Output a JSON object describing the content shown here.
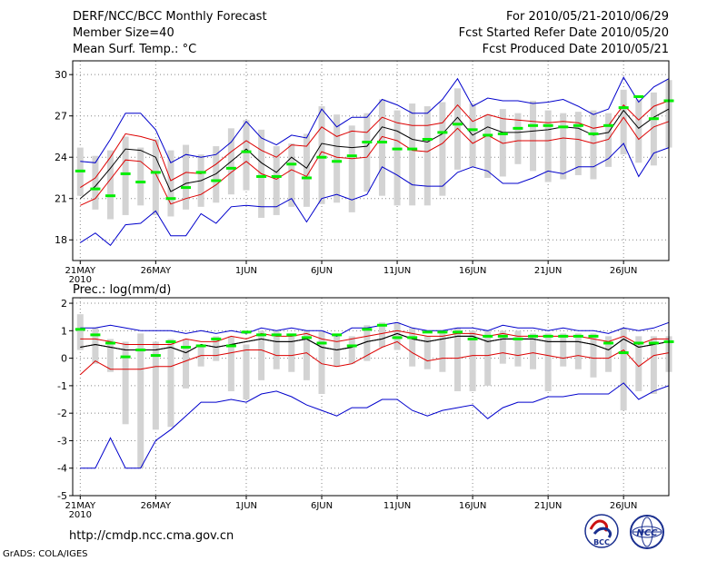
{
  "header": {
    "title": "DERF/NCC/BCC Monthly Forecast",
    "member_size": "Member Size=40",
    "variable": "Mean Surf. Temp.: °C",
    "period": "For 2010/05/21-2010/06/29",
    "fcst_started": "Fcst Started Refer Date 2010/05/20",
    "fcst_produced": "Fcst Produced Date 2010/05/21"
  },
  "footer": {
    "url": "http://cmdp.ncc.cma.gov.cn",
    "credit": "GrADS: COLA/IGES",
    "logo_left_text": "BCC",
    "logo_right_text": "NCC"
  },
  "colors": {
    "box": "#d3d3d3",
    "median": "#00ee00",
    "mean": "#000000",
    "envelope_inner": "#dd0000",
    "envelope_outer": "#0000cc"
  },
  "chart_data": [
    {
      "type": "box",
      "title": "Mean Surf. Temp.: °C",
      "ylabel": "°C",
      "ylim": [
        16.5,
        31
      ],
      "yticks": [
        18,
        21,
        24,
        27,
        30
      ],
      "xlim": [
        0.5,
        40
      ],
      "x": [
        1,
        2,
        3,
        4,
        5,
        6,
        7,
        8,
        9,
        10,
        11,
        12,
        13,
        14,
        15,
        16,
        17,
        18,
        19,
        20,
        21,
        22,
        23,
        24,
        25,
        26,
        27,
        28,
        29,
        30,
        31,
        32,
        33,
        34,
        35,
        36,
        37,
        38,
        39,
        40
      ],
      "xticks": [
        {
          "x": 1,
          "label": "21MAY",
          "sublabel": "2010"
        },
        {
          "x": 6,
          "label": "26MAY"
        },
        {
          "x": 12,
          "label": "1JUN"
        },
        {
          "x": 17,
          "label": "6JUN"
        },
        {
          "x": 22,
          "label": "11JUN"
        },
        {
          "x": 27,
          "label": "16JUN"
        },
        {
          "x": 32,
          "label": "21JUN"
        },
        {
          "x": 37,
          "label": "26JUN"
        }
      ],
      "series": [
        {
          "name": "ensemble maximum",
          "color": "#0000cc",
          "values": [
            23.7,
            23.6,
            25.3,
            27.2,
            27.2,
            26.0,
            23.6,
            24.2,
            24.0,
            24.2,
            25.1,
            26.6,
            25.4,
            24.9,
            25.6,
            25.4,
            27.5,
            26.2,
            26.9,
            26.9,
            28.2,
            27.8,
            27.2,
            27.2,
            28.2,
            29.7,
            27.7,
            28.3,
            28.1,
            28.1,
            27.9,
            28.0,
            28.2,
            27.7,
            27.1,
            27.5,
            29.8,
            28.0,
            29.1,
            29.7
          ]
        },
        {
          "name": "ensemble upper",
          "color": "#dd0000",
          "values": [
            21.8,
            22.5,
            24.0,
            25.7,
            25.5,
            25.2,
            22.3,
            22.9,
            22.8,
            23.5,
            24.4,
            25.2,
            24.5,
            24.0,
            24.9,
            24.8,
            26.2,
            25.5,
            25.9,
            25.8,
            26.9,
            26.5,
            26.3,
            26.3,
            26.5,
            27.8,
            26.6,
            27.1,
            26.8,
            26.7,
            26.6,
            26.5,
            26.6,
            26.5,
            26.1,
            26.3,
            27.8,
            26.7,
            27.7,
            28.1
          ]
        },
        {
          "name": "ensemble mean",
          "color": "#000000",
          "values": [
            21.0,
            21.9,
            23.2,
            24.6,
            24.5,
            24.0,
            21.5,
            22.1,
            22.3,
            22.8,
            23.7,
            24.6,
            23.6,
            22.9,
            24.0,
            23.2,
            25.0,
            24.8,
            24.7,
            24.8,
            26.2,
            25.9,
            25.3,
            25.1,
            25.7,
            26.9,
            25.6,
            26.2,
            25.8,
            25.8,
            25.9,
            26.0,
            26.2,
            26.1,
            25.6,
            25.8,
            27.4,
            26.1,
            26.9,
            27.5
          ]
        },
        {
          "name": "ensemble lower",
          "color": "#dd0000",
          "values": [
            20.5,
            21.0,
            22.4,
            23.8,
            23.7,
            22.8,
            20.6,
            21.0,
            21.3,
            22.0,
            22.9,
            23.7,
            22.8,
            22.4,
            23.1,
            22.6,
            24.4,
            24.0,
            23.9,
            24.0,
            25.5,
            25.2,
            24.5,
            24.4,
            25.0,
            26.1,
            25.0,
            25.6,
            25.0,
            25.2,
            25.2,
            25.2,
            25.4,
            25.3,
            25.0,
            25.3,
            26.9,
            25.3,
            26.2,
            26.6
          ]
        },
        {
          "name": "ensemble minimum",
          "color": "#0000cc",
          "values": [
            17.8,
            18.5,
            17.6,
            19.1,
            19.2,
            20.1,
            18.3,
            18.3,
            19.9,
            19.2,
            20.4,
            20.5,
            20.4,
            20.4,
            21.0,
            19.3,
            21.0,
            21.3,
            20.9,
            21.3,
            23.3,
            22.7,
            22.0,
            21.9,
            21.9,
            22.9,
            23.3,
            23.0,
            22.1,
            22.1,
            22.5,
            23.0,
            22.8,
            23.3,
            23.3,
            23.9,
            25.0,
            22.6,
            24.3,
            24.7
          ]
        }
      ],
      "boxes": {
        "low": [
          21.2,
          20.2,
          19.5,
          19.8,
          20.5,
          19.8,
          19.7,
          20.2,
          20.4,
          20.7,
          21.3,
          21.6,
          19.6,
          19.8,
          20.4,
          20.4,
          20.6,
          20.7,
          20.0,
          21.5,
          21.2,
          20.5,
          20.5,
          20.5,
          21.2,
          23.1,
          23.3,
          22.5,
          22.6,
          23.5,
          23.0,
          22.2,
          22.4,
          22.7,
          22.4,
          23.3,
          24.2,
          23.6,
          23.4,
          24.7
        ],
        "high": [
          24.7,
          24.1,
          24.5,
          25.5,
          24.7,
          25.3,
          24.5,
          24.9,
          24.2,
          24.8,
          26.1,
          26.7,
          26.0,
          24.8,
          25.0,
          25.7,
          27.7,
          27.1,
          26.3,
          27.2,
          28.2,
          27.4,
          27.9,
          27.7,
          28.0,
          29.0,
          27.9,
          27.1,
          27.5,
          27.2,
          28.1,
          27.4,
          27.2,
          27.3,
          27.4,
          27.2,
          28.9,
          28.2,
          28.7,
          29.6
        ],
        "median": [
          23.0,
          21.7,
          21.2,
          22.8,
          22.2,
          22.9,
          21.0,
          21.8,
          22.9,
          22.3,
          23.2,
          24.4,
          22.6,
          22.6,
          23.5,
          22.5,
          24.0,
          23.7,
          24.1,
          25.1,
          25.1,
          24.6,
          24.6,
          25.3,
          25.8,
          26.4,
          26.0,
          25.6,
          25.7,
          26.1,
          26.3,
          26.3,
          26.2,
          26.3,
          25.7,
          26.3,
          27.6,
          28.4,
          26.8,
          28.1
        ]
      }
    },
    {
      "type": "box",
      "title": "Prec.: log(mm/d)",
      "ylabel": "log(mm/d)",
      "ylim": [
        -5,
        2.2
      ],
      "yticks": [
        -5,
        -4,
        -3,
        -2,
        -1,
        0,
        1,
        2
      ],
      "xlim": [
        0.5,
        40
      ],
      "x": [
        1,
        2,
        3,
        4,
        5,
        6,
        7,
        8,
        9,
        10,
        11,
        12,
        13,
        14,
        15,
        16,
        17,
        18,
        19,
        20,
        21,
        22,
        23,
        24,
        25,
        26,
        27,
        28,
        29,
        30,
        31,
        32,
        33,
        34,
        35,
        36,
        37,
        38,
        39,
        40
      ],
      "xticks": [
        {
          "x": 1,
          "label": "21MAY",
          "sublabel": "2010"
        },
        {
          "x": 6,
          "label": "26MAY"
        },
        {
          "x": 12,
          "label": "1JUN"
        },
        {
          "x": 17,
          "label": "6JUN"
        },
        {
          "x": 22,
          "label": "11JUN"
        },
        {
          "x": 27,
          "label": "16JUN"
        },
        {
          "x": 32,
          "label": "21JUN"
        },
        {
          "x": 37,
          "label": "26JUN"
        }
      ],
      "series": [
        {
          "name": "ensemble maximum",
          "color": "#0000cc",
          "values": [
            1.1,
            1.1,
            1.2,
            1.1,
            1.0,
            1.0,
            1.0,
            0.9,
            1.0,
            0.9,
            1.0,
            0.9,
            1.1,
            1.0,
            1.1,
            1.0,
            1.0,
            0.8,
            1.1,
            1.1,
            1.2,
            1.3,
            1.1,
            1.0,
            1.0,
            1.1,
            1.1,
            1.0,
            1.2,
            1.1,
            1.1,
            1.0,
            1.1,
            1.0,
            1.0,
            0.9,
            1.1,
            1.0,
            1.1,
            1.3
          ]
        },
        {
          "name": "ensemble upper",
          "color": "#dd0000",
          "values": [
            0.7,
            0.7,
            0.6,
            0.5,
            0.5,
            0.5,
            0.5,
            0.7,
            0.6,
            0.6,
            0.8,
            0.7,
            0.9,
            0.8,
            0.8,
            0.9,
            0.7,
            0.6,
            0.7,
            0.8,
            0.9,
            1.0,
            0.9,
            0.8,
            0.8,
            0.9,
            0.9,
            0.8,
            0.9,
            0.8,
            0.8,
            0.8,
            0.8,
            0.8,
            0.7,
            0.6,
            0.8,
            0.5,
            0.7,
            0.7
          ]
        },
        {
          "name": "ensemble mean",
          "color": "#000000",
          "values": [
            0.4,
            0.5,
            0.4,
            0.3,
            0.3,
            0.3,
            0.4,
            0.2,
            0.5,
            0.4,
            0.5,
            0.6,
            0.7,
            0.6,
            0.6,
            0.7,
            0.4,
            0.3,
            0.4,
            0.6,
            0.7,
            0.9,
            0.7,
            0.6,
            0.7,
            0.8,
            0.8,
            0.6,
            0.7,
            0.7,
            0.7,
            0.6,
            0.6,
            0.6,
            0.5,
            0.3,
            0.7,
            0.4,
            0.5,
            0.6
          ]
        },
        {
          "name": "ensemble lower",
          "color": "#dd0000",
          "values": [
            -0.6,
            -0.1,
            -0.4,
            -0.4,
            -0.4,
            -0.3,
            -0.3,
            -0.1,
            0.1,
            0.1,
            0.2,
            0.3,
            0.3,
            0.1,
            0.1,
            0.2,
            -0.2,
            -0.3,
            -0.2,
            0.1,
            0.4,
            0.6,
            0.2,
            -0.1,
            0.0,
            0.0,
            0.1,
            0.1,
            0.2,
            0.1,
            0.2,
            0.1,
            0.0,
            0.1,
            0.0,
            0.0,
            0.3,
            -0.3,
            0.1,
            0.2
          ]
        },
        {
          "name": "ensemble minimum",
          "color": "#0000cc",
          "values": [
            -4.0,
            -4.0,
            -2.9,
            -4.0,
            -4.0,
            -3.0,
            -2.6,
            -2.1,
            -1.6,
            -1.6,
            -1.5,
            -1.6,
            -1.3,
            -1.2,
            -1.4,
            -1.7,
            -1.9,
            -2.1,
            -1.8,
            -1.8,
            -1.5,
            -1.5,
            -1.9,
            -2.1,
            -1.9,
            -1.8,
            -1.7,
            -2.2,
            -1.8,
            -1.6,
            -1.6,
            -1.4,
            -1.4,
            -1.3,
            -1.3,
            -1.3,
            -0.9,
            -1.5,
            -1.2,
            -1.0
          ]
        },
        {
          "name": "ensemble baseline",
          "color": "#000000",
          "values": [
            0.4,
            0.5,
            0.4,
            0.3,
            0.3,
            0.3,
            0.4,
            0.2,
            0.5,
            0.4,
            0.5,
            0.6,
            0.7,
            0.6,
            0.6,
            0.7,
            0.4,
            0.3,
            0.4,
            0.6,
            0.7,
            0.9,
            0.7,
            0.6,
            0.7,
            0.8,
            0.8,
            0.6,
            0.7,
            0.7,
            0.7,
            0.6,
            0.6,
            0.6,
            0.5,
            0.3,
            0.7,
            0.4,
            0.5,
            0.6
          ]
        }
      ],
      "boxes": {
        "low": [
          0.3,
          -0.2,
          -0.5,
          -2.4,
          -4.0,
          -2.6,
          -2.5,
          -1.1,
          -0.3,
          -0.1,
          -1.2,
          -1.5,
          -0.8,
          -0.4,
          -0.5,
          -0.8,
          -1.3,
          -0.3,
          -0.2,
          -0.1,
          0.4,
          0.3,
          -0.3,
          -0.4,
          -0.5,
          -1.2,
          -1.2,
          -1.0,
          -0.2,
          -0.3,
          -0.4,
          -1.2,
          -0.3,
          -0.4,
          -0.7,
          -0.5,
          -1.9,
          -1.2,
          -1.3,
          -0.5
        ],
        "high": [
          1.6,
          1.1,
          0.7,
          0.6,
          0.9,
          0.6,
          0.7,
          0.7,
          0.5,
          0.8,
          0.8,
          0.5,
          1.0,
          1.0,
          0.9,
          1.0,
          1.0,
          0.9,
          0.8,
          1.2,
          1.3,
          1.3,
          1.1,
          0.8,
          1.0,
          1.1,
          1.0,
          1.0,
          1.0,
          1.0,
          0.9,
          0.9,
          0.9,
          0.9,
          0.9,
          0.8,
          1.1,
          0.8,
          0.8,
          0.8
        ],
        "median": [
          1.05,
          0.85,
          0.55,
          0.05,
          0.3,
          0.1,
          0.6,
          0.4,
          0.45,
          0.7,
          0.45,
          0.95,
          0.85,
          0.85,
          0.85,
          0.75,
          0.55,
          0.85,
          0.45,
          1.05,
          1.2,
          0.75,
          0.75,
          0.95,
          0.95,
          0.95,
          0.7,
          0.8,
          0.8,
          0.7,
          0.8,
          0.8,
          0.8,
          0.8,
          0.8,
          0.55,
          0.2,
          0.55,
          0.55,
          0.6
        ]
      }
    }
  ]
}
